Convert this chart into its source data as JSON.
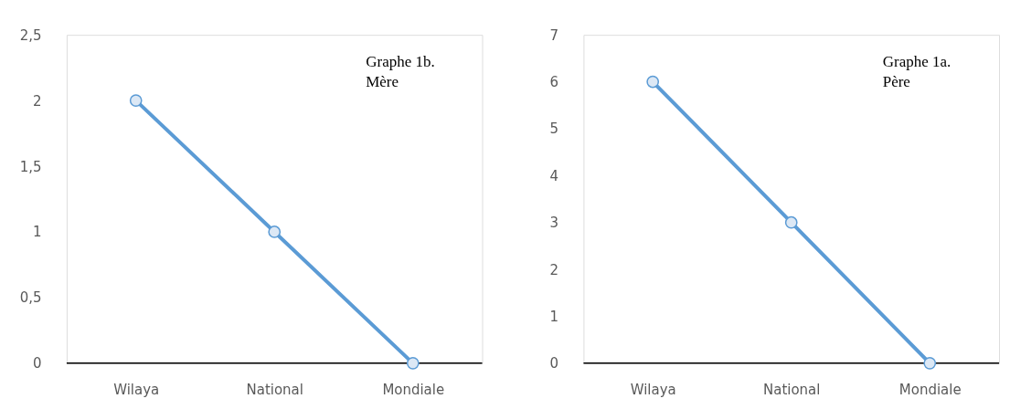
{
  "chart_data": [
    {
      "type": "line",
      "categories": [
        "Wilaya",
        "National",
        "Mondiale"
      ],
      "series": [
        {
          "color": "#5b9bd5",
          "values": [
            2,
            1,
            0
          ]
        }
      ],
      "ylim": [
        0,
        2.5
      ],
      "yticks": [
        0,
        {
          "value": 0.5,
          "label": "0,5"
        },
        1,
        {
          "value": 1.5,
          "label": "1,5"
        },
        2,
        {
          "value": 2.5,
          "label": "2,5"
        }
      ],
      "marker": "circle",
      "annotations": [
        "Graphe 1b.\nMère"
      ]
    },
    {
      "type": "line",
      "categories": [
        "Wilaya",
        "National",
        "Mondiale"
      ],
      "series": [
        {
          "color": "#5b9bd5",
          "values": [
            6,
            3,
            0
          ]
        }
      ],
      "ylim": [
        0,
        7
      ],
      "yticks": [
        0,
        1,
        2,
        3,
        4,
        5,
        6,
        7
      ],
      "marker": "circle",
      "annotations": [
        "Graphe 1a.\n Père"
      ]
    }
  ]
}
